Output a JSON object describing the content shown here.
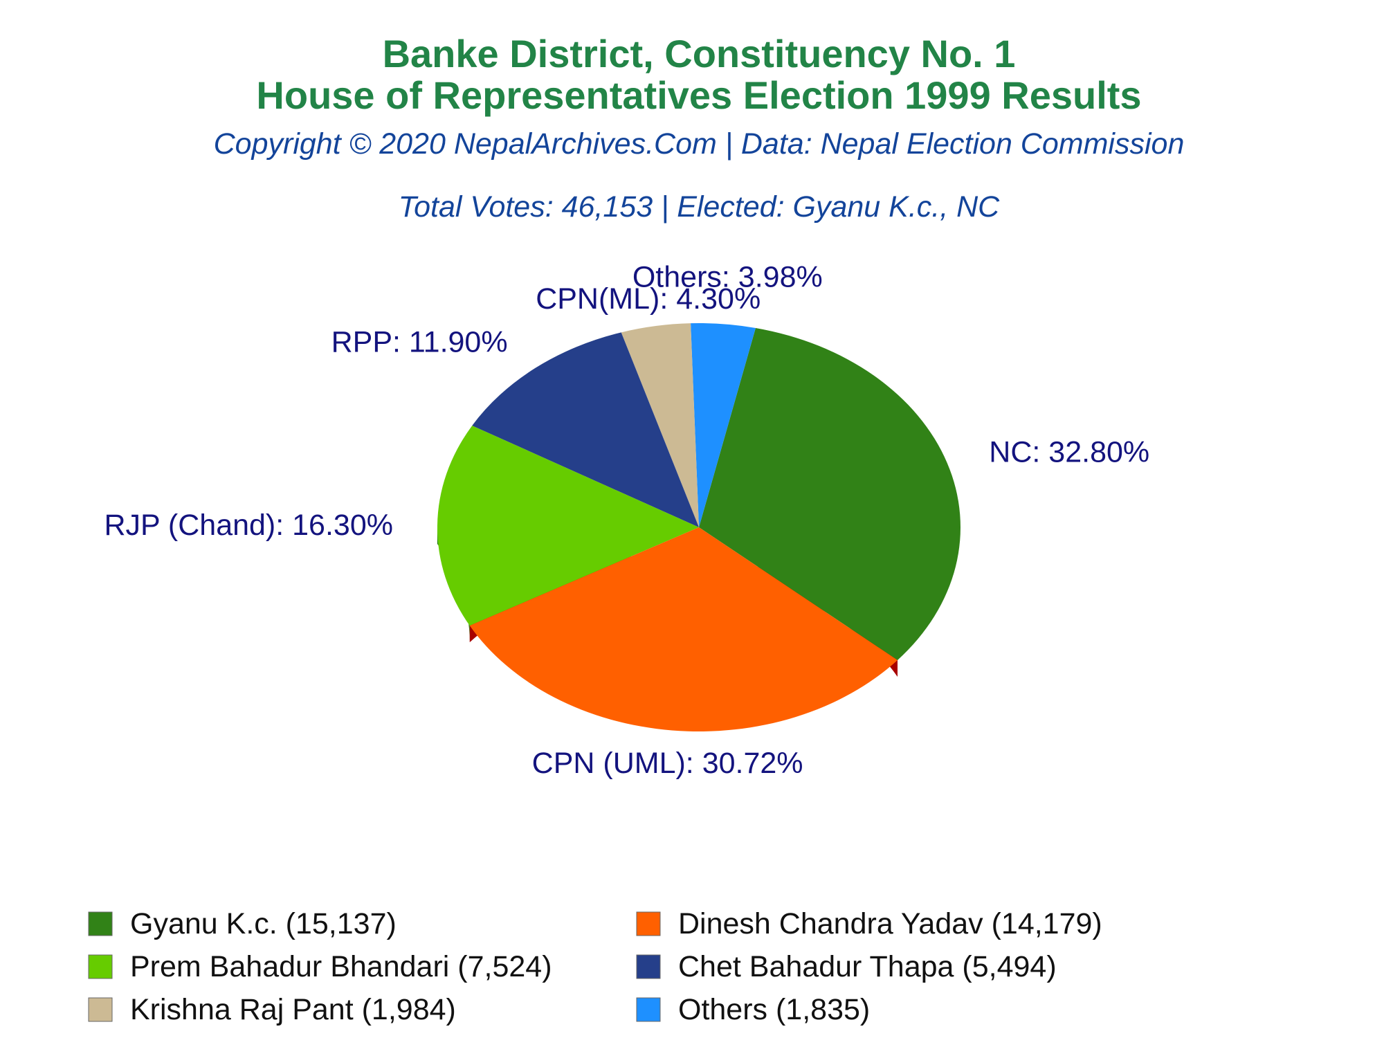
{
  "chart_data": {
    "type": "pie",
    "title": "Banke District, Constituency No. 1",
    "title_line2": "House of Representatives Election 1999 Results",
    "subtitle": "Copyright © 2020 NepalArchives.Com | Data: Nepal Election Commission",
    "summary": "Total Votes: 46,153 | Elected: Gyanu K.c., NC",
    "legend_position": "bottom",
    "slices": [
      {
        "party": "NC",
        "percent": 32.8,
        "label": "NC: 32.80%",
        "candidate": "Gyanu K.c.",
        "votes": 15137,
        "legend": "Gyanu K.c. (15,137)",
        "color": "#318217",
        "side": "#1e5a0d"
      },
      {
        "party": "Others",
        "percent": 3.98,
        "label": "Others: 3.98%",
        "candidate": "Others",
        "votes": 1835,
        "legend": "Others (1,835)",
        "color": "#1e90ff",
        "side": "#0f5fb8"
      },
      {
        "party": "CPN(ML)",
        "percent": 4.3,
        "label": "CPN(ML): 4.30%",
        "candidate": "Krishna Raj Pant",
        "votes": 1984,
        "legend": "Krishna Raj Pant (1,984)",
        "color": "#ccba94",
        "side": "#9a8a68"
      },
      {
        "party": "RPP",
        "percent": 11.9,
        "label": "RPP: 11.90%",
        "candidate": "Chet Bahadur Thapa",
        "votes": 5494,
        "legend": "Chet Bahadur Thapa (5,494)",
        "color": "#253f8a",
        "side": "#0c0c4a"
      },
      {
        "party": "RJP (Chand)",
        "percent": 16.3,
        "label": "RJP (Chand): 16.30%",
        "candidate": "Prem Bahadur Bhandari",
        "votes": 7524,
        "legend": "Prem Bahadur Bhandari (7,524)",
        "color": "#66cc00",
        "side": "#1a7a00"
      },
      {
        "party": "CPN (UML)",
        "percent": 30.72,
        "label": "CPN (UML): 30.72%",
        "candidate": "Dinesh Chandra Yadav",
        "votes": 14179,
        "legend": "Dinesh Chandra Yadav (14,179)",
        "color": "#ff6000",
        "side": "#a80000"
      }
    ],
    "legend_order": [
      "NC",
      "CPN (UML)",
      "RJP (Chand)",
      "RPP",
      "CPN(ML)",
      "Others"
    ]
  }
}
